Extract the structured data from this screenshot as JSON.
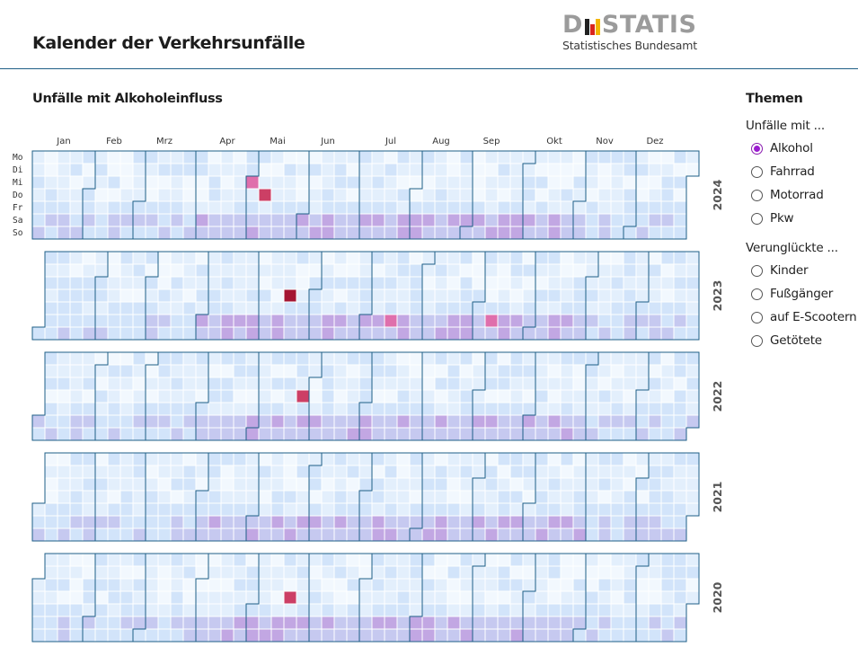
{
  "header": {
    "title": "Kalender der Verkehrsunfälle",
    "logo": {
      "word_start": "D",
      "word_end": "STATIS",
      "subtitle": "Statistisches Bundesamt",
      "bar_colors": [
        "#222222",
        "#d9261c",
        "#f2b600"
      ]
    }
  },
  "sidebar": {
    "heading": "Themen",
    "groups": [
      {
        "label": "Unfälle mit ...",
        "options": [
          {
            "label": "Alkohol",
            "selected": true
          },
          {
            "label": "Fahrrad",
            "selected": false
          },
          {
            "label": "Motorrad",
            "selected": false
          },
          {
            "label": "Pkw",
            "selected": false
          }
        ]
      },
      {
        "label": "Verunglückte ...",
        "options": [
          {
            "label": "Kinder",
            "selected": false
          },
          {
            "label": "Fußgänger",
            "selected": false
          },
          {
            "label": "auf E-Scootern",
            "selected": false
          },
          {
            "label": "Getötete",
            "selected": false
          }
        ]
      }
    ]
  },
  "chart_data": {
    "type": "heatmap",
    "title": "Unfälle mit Alkoholeinfluss",
    "month_labels": [
      "Jan",
      "Feb",
      "Mrz",
      "Apr",
      "Mai",
      "Jun",
      "Jul",
      "Aug",
      "Sep",
      "Okt",
      "Nov",
      "Dez"
    ],
    "weekday_labels": [
      "Mo",
      "Di",
      "Mi",
      "Do",
      "Fr",
      "Sa",
      "So"
    ],
    "years": [
      2024,
      2023,
      2022,
      2021,
      2020
    ],
    "color_scale": [
      "#f2f8fe",
      "#e3effc",
      "#d2e4fa",
      "#c6c9f0",
      "#c2a7e3",
      "#c996d7",
      "#df6fac",
      "#cc3f65",
      "#a41532"
    ],
    "cell_border": "#ffffff",
    "month_outline": "#1f5f87",
    "notable_days": [
      {
        "date": "2024-05-01",
        "level": 6
      },
      {
        "date": "2024-05-09",
        "level": 7
      },
      {
        "date": "2023-05-18",
        "level": 8
      },
      {
        "date": "2023-07-15",
        "level": 6
      },
      {
        "date": "2023-09-09",
        "level": 6
      },
      {
        "date": "2022-05-26",
        "level": 7
      },
      {
        "date": "2020-05-21",
        "level": 7
      }
    ]
  }
}
